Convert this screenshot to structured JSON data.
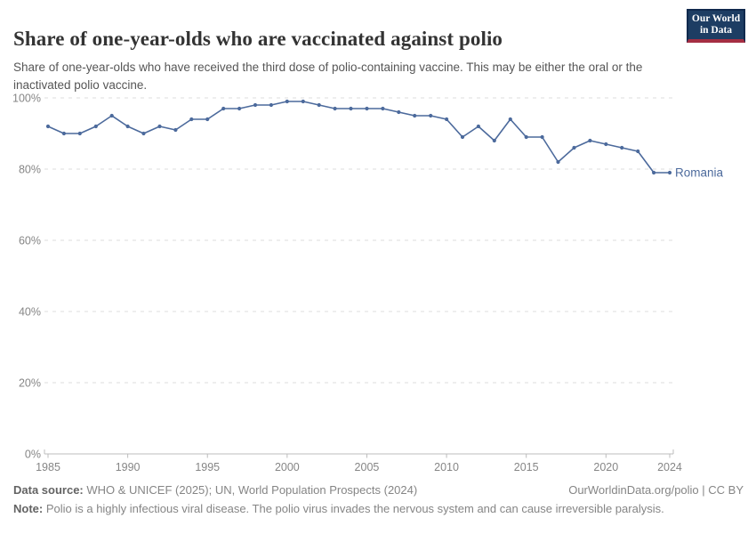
{
  "header": {
    "title": "Share of one-year-olds who are vaccinated against polio",
    "subtitle": "Share of one-year-olds who have received the third dose of polio-containing vaccine. This may be either the oral or the inactivated polio vaccine.",
    "logo": {
      "line1": "Our World",
      "line2": "in Data"
    }
  },
  "chart_data": {
    "type": "line",
    "title": "Share of one-year-olds who are vaccinated against polio",
    "x": [
      1985,
      1986,
      1987,
      1988,
      1989,
      1990,
      1991,
      1992,
      1993,
      1994,
      1995,
      1996,
      1997,
      1998,
      1999,
      2000,
      2001,
      2002,
      2003,
      2004,
      2005,
      2006,
      2007,
      2008,
      2009,
      2010,
      2011,
      2012,
      2013,
      2014,
      2015,
      2016,
      2017,
      2018,
      2019,
      2020,
      2021,
      2022,
      2023,
      2024
    ],
    "series": [
      {
        "name": "Romania",
        "color": "#4c6a9c",
        "values": [
          92,
          90,
          90,
          92,
          95,
          92,
          90,
          92,
          91,
          94,
          94,
          97,
          97,
          98,
          98,
          99,
          99,
          98,
          97,
          97,
          97,
          97,
          96,
          95,
          95,
          94,
          89,
          92,
          88,
          94,
          89,
          89,
          82,
          86,
          88,
          87,
          86,
          85,
          79,
          79
        ]
      }
    ],
    "xlim": [
      1985,
      2024
    ],
    "ylim": [
      0,
      100
    ],
    "x_ticks": [
      1985,
      1990,
      1995,
      2000,
      2005,
      2010,
      2015,
      2020,
      2024
    ],
    "y_ticks": [
      0,
      20,
      40,
      60,
      80,
      100
    ],
    "y_tick_suffix": "%",
    "grid": "horizontal-dashed",
    "legend_position": "end-of-line",
    "end_label": "Romania"
  },
  "footer": {
    "data_source_label": "Data source:",
    "data_source_text": " WHO & UNICEF (2025); UN, World Population Prospects (2024)",
    "rights": "OurWorldinData.org/polio | CC BY",
    "note_label": "Note:",
    "note_text": " Polio is a highly infectious viral disease. The polio virus invades the nervous system and can cause irreversible paralysis."
  },
  "colors": {
    "series_line": "#4c6a9c",
    "gridline": "#dcdcdc",
    "axis": "#bcbcbc",
    "tick_label": "#868686",
    "logo_navy": "#1d3d63",
    "logo_red": "#a52e43",
    "title_text": "#333333",
    "subtitle_text": "#565656"
  }
}
